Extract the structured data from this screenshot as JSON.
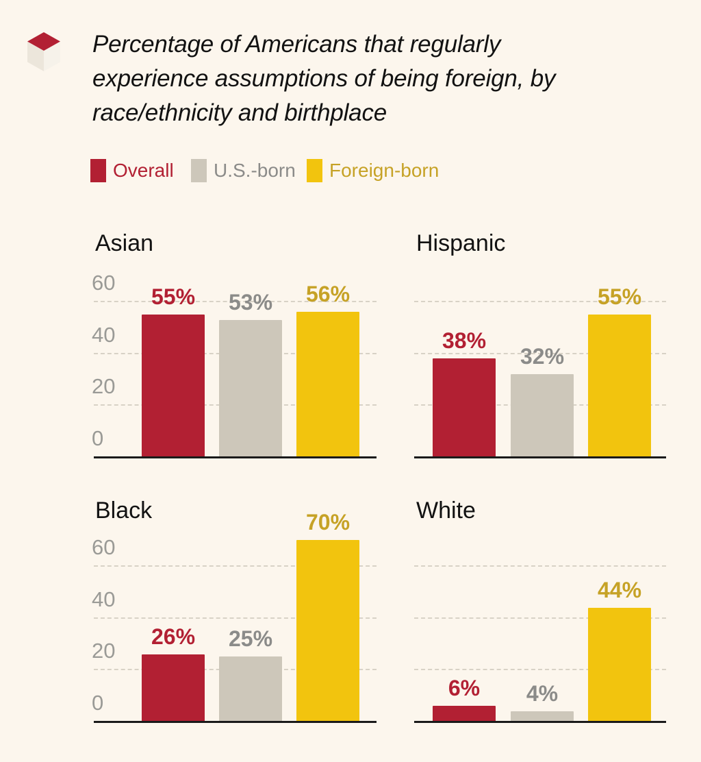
{
  "header": {
    "title_lines": [
      "Percentage of Americans that regularly",
      "experience assumptions of being foreign, by",
      "race/ethnicity and birthplace"
    ]
  },
  "legend": {
    "items": [
      {
        "label": "Overall",
        "swatch_color": "#b22033",
        "text_color": "#b22033"
      },
      {
        "label": "U.S.-born",
        "swatch_color": "#cdc7ba",
        "text_color": "#8b8b89"
      },
      {
        "label": "Foreign-born",
        "swatch_color": "#f2c40e",
        "text_color": "#c6a226"
      }
    ]
  },
  "chart_data": {
    "type": "bar",
    "title": "Percentage of Americans that regularly experience assumptions of being foreign, by race/ethnicity and birthplace",
    "series": [
      "Overall",
      "U.S.-born",
      "Foreign-born"
    ],
    "series_bar_colors": [
      "#b22033",
      "#cdc7ba",
      "#f2c40e"
    ],
    "series_label_colors": [
      "#b22033",
      "#8b8b89",
      "#c6a226"
    ],
    "panels": [
      {
        "category": "Asian",
        "values": [
          55,
          53,
          56
        ]
      },
      {
        "category": "Hispanic",
        "values": [
          38,
          32,
          55
        ]
      },
      {
        "category": "Black",
        "values": [
          26,
          25,
          70
        ]
      },
      {
        "category": "White",
        "values": [
          6,
          4,
          44
        ]
      }
    ],
    "ylim": [
      0,
      60
    ],
    "yticks": [
      0,
      20,
      40,
      60
    ],
    "gridlines": [
      20,
      40,
      60
    ],
    "value_suffix": "%",
    "grid": "dashed",
    "legend_position": "top"
  },
  "colors": {
    "background": "#fcf6ed",
    "axis": "#1a1a1a",
    "tick_label": "#9a9a96",
    "gridline": "#d8d2c6",
    "title_text": "#121212",
    "logo_red": "#b22033",
    "logo_left_face": "#ece6db",
    "logo_right_face": "#f6f2ea"
  }
}
